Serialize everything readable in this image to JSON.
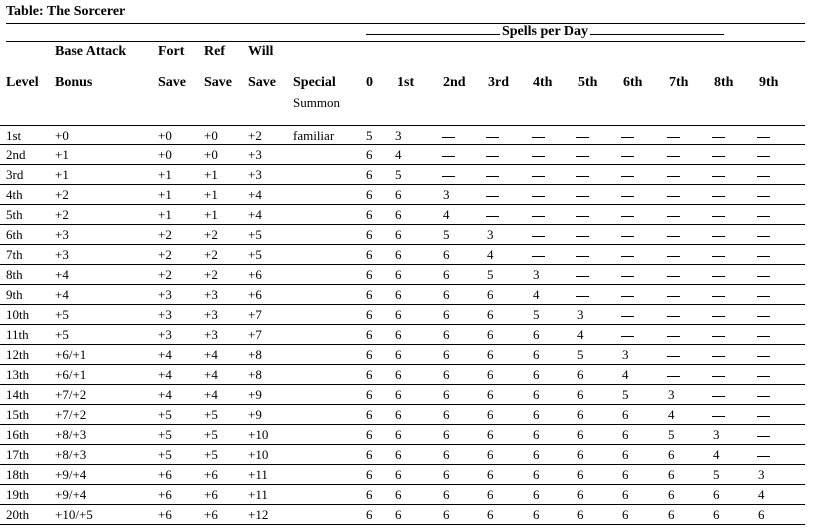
{
  "table": {
    "title": "Table: The Sorcerer",
    "spells_header": "Spells per Day",
    "headers": {
      "level": "Level",
      "bab_top": "Base Attack",
      "bab_bottom": "Bonus",
      "fort_top": "Fort",
      "fort_bottom": "Save",
      "ref_top": "Ref",
      "ref_bottom": "Save",
      "will_top": "Will",
      "will_bottom": "Save",
      "special": "Special",
      "spell_levels": [
        "0",
        "1st",
        "2nd",
        "3rd",
        "4th",
        "5th",
        "6th",
        "7th",
        "8th",
        "9th"
      ]
    },
    "special_first_row_top": "Summon",
    "rows": [
      {
        "level": "1st",
        "bab": "+0",
        "fort": "+0",
        "ref": "+0",
        "will": "+2",
        "special": "familiar",
        "spells": [
          "5",
          "3",
          "—",
          "—",
          "—",
          "—",
          "—",
          "—",
          "—",
          "—"
        ]
      },
      {
        "level": "2nd",
        "bab": "+1",
        "fort": "+0",
        "ref": "+0",
        "will": "+3",
        "special": "",
        "spells": [
          "6",
          "4",
          "—",
          "—",
          "—",
          "—",
          "—",
          "—",
          "—",
          "—"
        ]
      },
      {
        "level": "3rd",
        "bab": "+1",
        "fort": "+1",
        "ref": "+1",
        "will": "+3",
        "special": "",
        "spells": [
          "6",
          "5",
          "—",
          "—",
          "—",
          "—",
          "—",
          "—",
          "—",
          "—"
        ]
      },
      {
        "level": "4th",
        "bab": "+2",
        "fort": "+1",
        "ref": "+1",
        "will": "+4",
        "special": "",
        "spells": [
          "6",
          "6",
          "3",
          "—",
          "—",
          "—",
          "—",
          "—",
          "—",
          "—"
        ]
      },
      {
        "level": "5th",
        "bab": "+2",
        "fort": "+1",
        "ref": "+1",
        "will": "+4",
        "special": "",
        "spells": [
          "6",
          "6",
          "4",
          "—",
          "—",
          "—",
          "—",
          "—",
          "—",
          "—"
        ]
      },
      {
        "level": "6th",
        "bab": "+3",
        "fort": "+2",
        "ref": "+2",
        "will": "+5",
        "special": "",
        "spells": [
          "6",
          "6",
          "5",
          "3",
          "—",
          "—",
          "—",
          "—",
          "—",
          "—"
        ]
      },
      {
        "level": "7th",
        "bab": "+3",
        "fort": "+2",
        "ref": "+2",
        "will": "+5",
        "special": "",
        "spells": [
          "6",
          "6",
          "6",
          "4",
          "—",
          "—",
          "—",
          "—",
          "—",
          "—"
        ]
      },
      {
        "level": "8th",
        "bab": "+4",
        "fort": "+2",
        "ref": "+2",
        "will": "+6",
        "special": "",
        "spells": [
          "6",
          "6",
          "6",
          "5",
          "3",
          "—",
          "—",
          "—",
          "—",
          "—"
        ]
      },
      {
        "level": "9th",
        "bab": "+4",
        "fort": "+3",
        "ref": "+3",
        "will": "+6",
        "special": "",
        "spells": [
          "6",
          "6",
          "6",
          "6",
          "4",
          "—",
          "—",
          "—",
          "—",
          "—"
        ]
      },
      {
        "level": "10th",
        "bab": "+5",
        "fort": "+3",
        "ref": "+3",
        "will": "+7",
        "special": "",
        "spells": [
          "6",
          "6",
          "6",
          "6",
          "5",
          "3",
          "—",
          "—",
          "—",
          "—"
        ]
      },
      {
        "level": "11th",
        "bab": "+5",
        "fort": "+3",
        "ref": "+3",
        "will": "+7",
        "special": "",
        "spells": [
          "6",
          "6",
          "6",
          "6",
          "6",
          "4",
          "—",
          "—",
          "—",
          "—"
        ]
      },
      {
        "level": "12th",
        "bab": "+6/+1",
        "fort": "+4",
        "ref": "+4",
        "will": "+8",
        "special": "",
        "spells": [
          "6",
          "6",
          "6",
          "6",
          "6",
          "5",
          "3",
          "—",
          "—",
          "—"
        ]
      },
      {
        "level": "13th",
        "bab": "+6/+1",
        "fort": "+4",
        "ref": "+4",
        "will": "+8",
        "special": "",
        "spells": [
          "6",
          "6",
          "6",
          "6",
          "6",
          "6",
          "4",
          "—",
          "—",
          "—"
        ]
      },
      {
        "level": "14th",
        "bab": "+7/+2",
        "fort": "+4",
        "ref": "+4",
        "will": "+9",
        "special": "",
        "spells": [
          "6",
          "6",
          "6",
          "6",
          "6",
          "6",
          "5",
          "3",
          "—",
          "—"
        ]
      },
      {
        "level": "15th",
        "bab": "+7/+2",
        "fort": "+5",
        "ref": "+5",
        "will": "+9",
        "special": "",
        "spells": [
          "6",
          "6",
          "6",
          "6",
          "6",
          "6",
          "6",
          "4",
          "—",
          "—"
        ]
      },
      {
        "level": "16th",
        "bab": "+8/+3",
        "fort": "+5",
        "ref": "+5",
        "will": "+10",
        "special": "",
        "spells": [
          "6",
          "6",
          "6",
          "6",
          "6",
          "6",
          "6",
          "5",
          "3",
          "—"
        ]
      },
      {
        "level": "17th",
        "bab": "+8/+3",
        "fort": "+5",
        "ref": "+5",
        "will": "+10",
        "special": "",
        "spells": [
          "6",
          "6",
          "6",
          "6",
          "6",
          "6",
          "6",
          "6",
          "4",
          "—"
        ]
      },
      {
        "level": "18th",
        "bab": "+9/+4",
        "fort": "+6",
        "ref": "+6",
        "will": "+11",
        "special": "",
        "spells": [
          "6",
          "6",
          "6",
          "6",
          "6",
          "6",
          "6",
          "6",
          "5",
          "3"
        ]
      },
      {
        "level": "19th",
        "bab": "+9/+4",
        "fort": "+6",
        "ref": "+6",
        "will": "+11",
        "special": "",
        "spells": [
          "6",
          "6",
          "6",
          "6",
          "6",
          "6",
          "6",
          "6",
          "6",
          "4"
        ]
      },
      {
        "level": "20th",
        "bab": "+10/+5",
        "fort": "+6",
        "ref": "+6",
        "will": "+12",
        "special": "",
        "spells": [
          "6",
          "6",
          "6",
          "6",
          "6",
          "6",
          "6",
          "6",
          "6",
          "6"
        ]
      }
    ]
  }
}
